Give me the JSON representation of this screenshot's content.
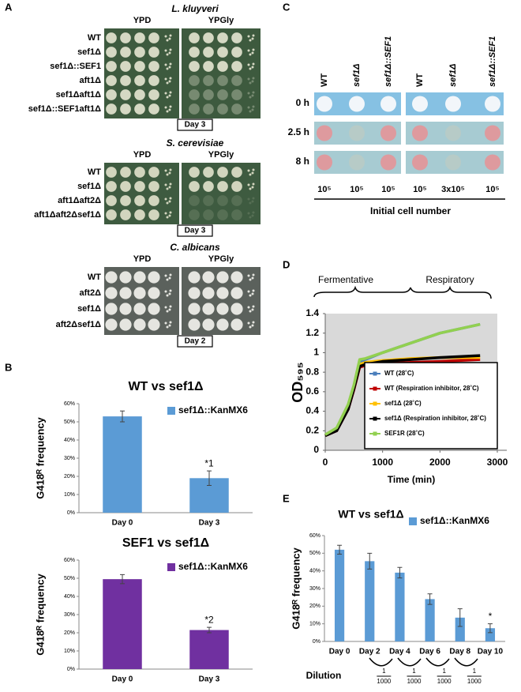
{
  "panel_labels": {
    "a": "A",
    "b": "B",
    "c": "C",
    "d": "D",
    "e": "E"
  },
  "panel_a": {
    "groups": [
      {
        "species": "L. kluyveri",
        "media": [
          "YPD",
          "YPGly"
        ],
        "strains": [
          "WT",
          "sef1Δ",
          "sef1Δ::SEF1",
          "aft1Δ",
          "sef1Δaft1Δ",
          "sef1Δ::SEF1aft1Δ"
        ],
        "day": "Day 3"
      },
      {
        "species": "S. cerevisiae",
        "media": [
          "YPD",
          "YPGly"
        ],
        "strains": [
          "WT",
          "sef1Δ",
          "aft1Δaft2Δ",
          "aft1Δaft2Δsef1Δ"
        ],
        "day": "Day 3"
      },
      {
        "species": "C. albicans",
        "media": [
          "YPD",
          "YPGly"
        ],
        "strains": [
          "WT",
          "aft2Δ",
          "sef1Δ",
          "aft2Δsef1Δ"
        ],
        "day": "Day 2"
      }
    ]
  },
  "panel_c": {
    "strains": [
      "WT",
      "sef1Δ",
      "sef1Δ::SEF1",
      "WT",
      "sef1Δ",
      "sef1Δ::SEF1"
    ],
    "times": [
      "0 h",
      "2.5 h",
      "8 h"
    ],
    "cell_numbers": [
      "10⁵",
      "10⁵",
      "10⁵",
      "10⁵",
      "3x10⁵",
      "10⁵"
    ],
    "xlabel": "Initial cell number"
  },
  "chart_data": [
    {
      "type": "bar",
      "title": "WT vs sef1Δ",
      "ylabel": "G418ᴿ frequency",
      "categories": [
        "Day 0",
        "Day 3"
      ],
      "series": [
        {
          "name": "sef1Δ::KanMX6",
          "color": "#5b9bd5",
          "values": [
            53,
            19
          ],
          "errors": [
            3,
            4
          ],
          "value_annotations": [
            null,
            "*1"
          ]
        }
      ],
      "ylim": [
        0,
        60
      ],
      "yticks": [
        {
          "value": 0,
          "label": "0%"
        },
        {
          "value": 10,
          "label": "10%"
        },
        {
          "value": 20,
          "label": "20%"
        },
        {
          "value": 30,
          "label": "30%"
        },
        {
          "value": 40,
          "label": "40%"
        },
        {
          "value": 50,
          "label": "50%"
        },
        {
          "value": 60,
          "label": "60%"
        }
      ]
    },
    {
      "type": "bar",
      "title": "SEF1 vs sef1Δ",
      "ylabel": "G418ᴿ frequency",
      "categories": [
        "Day 0",
        "Day 3"
      ],
      "series": [
        {
          "name": "sef1Δ::KanMX6",
          "color": "#7030a0",
          "values": [
            49.5,
            21.5
          ],
          "errors": [
            2.5,
            1.5
          ],
          "value_annotations": [
            null,
            "*2"
          ]
        }
      ],
      "ylim": [
        0,
        60
      ],
      "yticks": [
        {
          "value": 0,
          "label": "0%"
        },
        {
          "value": 10,
          "label": "10%"
        },
        {
          "value": 20,
          "label": "20%"
        },
        {
          "value": 30,
          "label": "30%"
        },
        {
          "value": 40,
          "label": "40%"
        },
        {
          "value": 50,
          "label": "50%"
        },
        {
          "value": 60,
          "label": "60%"
        }
      ]
    },
    {
      "type": "line",
      "xlabel": "Time (min)",
      "ylabel": "OD₅₉₅",
      "phases": [
        "Fermentative",
        "Respiratory"
      ],
      "x": [
        0,
        200,
        400,
        500,
        600,
        700,
        1000,
        1500,
        2000,
        2700
      ],
      "series": [
        {
          "name": "WT (28˚C)",
          "color": "#4a7ebb",
          "values": [
            0.15,
            0.22,
            0.45,
            0.65,
            0.9,
            0.93,
            1.0,
            1.1,
            1.2,
            1.29
          ]
        },
        {
          "name": "WT (Respiration inhibitor, 28˚C)",
          "color": "#c00000",
          "values": [
            0.15,
            0.2,
            0.42,
            0.62,
            0.85,
            0.87,
            0.89,
            0.9,
            0.91,
            0.93
          ]
        },
        {
          "name": "sef1Δ (28˚C)",
          "color": "#ffc000",
          "values": [
            0.15,
            0.21,
            0.44,
            0.64,
            0.88,
            0.9,
            0.92,
            0.94,
            0.95,
            0.95
          ]
        },
        {
          "name": "sef1Δ (Respiration inhibitor, 28˚C)",
          "color": "#000000",
          "values": [
            0.15,
            0.2,
            0.42,
            0.63,
            0.86,
            0.88,
            0.91,
            0.93,
            0.95,
            0.97
          ]
        },
        {
          "name": "SEF1R (28˚C)",
          "color": "#92d050",
          "values": [
            0.16,
            0.23,
            0.47,
            0.67,
            0.93,
            0.94,
            1.0,
            1.1,
            1.2,
            1.29
          ]
        }
      ],
      "xlim": [
        0,
        3000
      ],
      "xticks": [
        0,
        1000,
        2000,
        3000
      ],
      "ylim": [
        0,
        1.4
      ],
      "yticks": [
        0,
        0.2,
        0.4,
        0.6,
        0.8,
        1,
        1.2,
        1.4
      ],
      "plot_background": "#d9d9d9",
      "legend": "lower-right"
    },
    {
      "type": "bar",
      "title": "WT vs sef1Δ",
      "ylabel": "G418ᴿ frequency",
      "categories": [
        "Day 0",
        "Day 2",
        "Day 4",
        "Day 6",
        "Day 8",
        "Day 10"
      ],
      "series": [
        {
          "name": "sef1Δ::KanMX6",
          "color": "#5b9bd5",
          "values": [
            52,
            45.5,
            39,
            24,
            13.5,
            7.5
          ],
          "errors": [
            2.5,
            4.5,
            3,
            3,
            5,
            2.5
          ],
          "value_annotations": [
            null,
            null,
            null,
            null,
            null,
            "*"
          ]
        }
      ],
      "ylim": [
        0,
        60
      ],
      "yticks": [
        {
          "value": 0,
          "label": "0%"
        },
        {
          "value": 10,
          "label": "10%"
        },
        {
          "value": 20,
          "label": "20%"
        },
        {
          "value": 30,
          "label": "30%"
        },
        {
          "value": 40,
          "label": "40%"
        },
        {
          "value": 50,
          "label": "50%"
        },
        {
          "value": 60,
          "label": "60%"
        }
      ],
      "dilution": {
        "label": "Dilution",
        "fractions": [
          {
            "numerator": "1",
            "denominator": "1000"
          },
          {
            "numerator": "1",
            "denominator": "1000"
          },
          {
            "numerator": "1",
            "denominator": "1000"
          },
          {
            "numerator": "1",
            "denominator": "1000"
          }
        ]
      }
    }
  ]
}
